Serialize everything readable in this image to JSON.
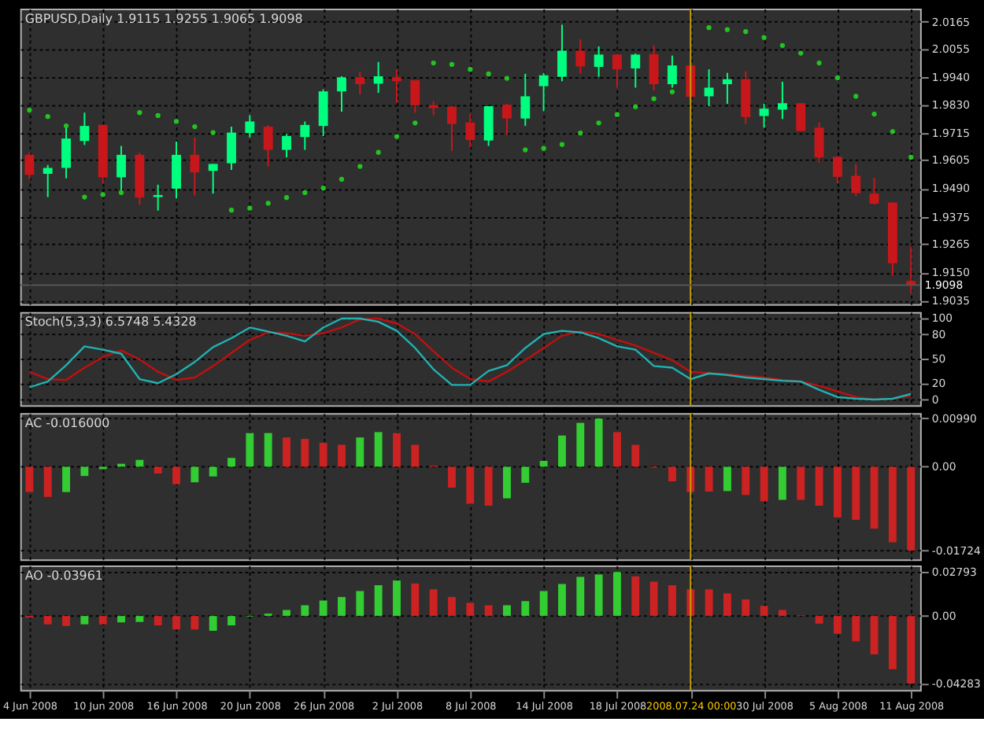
{
  "chart_data": [
    {
      "type": "candlestick",
      "title": "GBPUSD,Daily  1.9115 1.9255 1.9065 1.9098",
      "categories": [
        "4 Jun 2008",
        null,
        null,
        null,
        "10 Jun 2008",
        null,
        null,
        null,
        "16 Jun 2008",
        null,
        null,
        null,
        "20 Jun 2008",
        null,
        null,
        null,
        "26 Jun 2008",
        null,
        null,
        null,
        "2 Jul 2008",
        null,
        null,
        null,
        "8 Jul 2008",
        null,
        null,
        null,
        "14 Jul 2008",
        null,
        null,
        null,
        "18 Jul 2008",
        null,
        null,
        null,
        "2008.07.24 00:00",
        null,
        null,
        null,
        "30 Jul 2008",
        null,
        null,
        null,
        "5 Aug 2008",
        null,
        null,
        null,
        "11 Aug 2008"
      ],
      "ohlc": [
        [
          1.9626,
          1.9636,
          1.9525,
          1.9545
        ],
        [
          1.9549,
          1.9585,
          1.9455,
          1.9573
        ],
        [
          1.9573,
          1.9747,
          1.9531,
          1.9692
        ],
        [
          1.9682,
          1.9797,
          1.9666,
          1.9743
        ],
        [
          1.9747,
          1.9747,
          1.9509,
          1.9535
        ],
        [
          1.9535,
          1.9662,
          1.9475,
          1.9626
        ],
        [
          1.9626,
          1.9634,
          1.9424,
          1.9453
        ],
        [
          1.9455,
          1.9505,
          1.94,
          1.9463
        ],
        [
          1.9489,
          1.968,
          1.9449,
          1.9626
        ],
        [
          1.9626,
          1.9696,
          1.9461,
          1.9555
        ],
        [
          1.9561,
          1.9589,
          1.9469,
          1.9589
        ],
        [
          1.9592,
          1.974,
          1.9565,
          1.9716
        ],
        [
          1.9714,
          1.9787,
          1.9696,
          1.9761
        ],
        [
          1.974,
          1.9747,
          1.9579,
          1.9646
        ],
        [
          1.9646,
          1.971,
          1.9616,
          1.9702
        ],
        [
          1.9698,
          1.9761,
          1.9646,
          1.9747
        ],
        [
          1.9743,
          1.9891,
          1.9702,
          1.9883
        ],
        [
          1.9883,
          1.9944,
          1.9801,
          1.994
        ],
        [
          1.994,
          1.9962,
          1.9871,
          1.9912
        ],
        [
          1.9914,
          2.0002,
          1.9877,
          1.9944
        ],
        [
          1.994,
          1.9972,
          1.9837,
          1.9924
        ],
        [
          1.9928,
          1.9928,
          1.9797,
          1.9827
        ],
        [
          1.9827,
          1.9843,
          1.9787,
          1.9815
        ],
        [
          1.9821,
          1.9827,
          1.9642,
          1.9751
        ],
        [
          1.9757,
          1.9791,
          1.9656,
          1.9686
        ],
        [
          1.9684,
          1.9823,
          1.9662,
          1.9823
        ],
        [
          1.9829,
          1.9833,
          1.9706,
          1.9773
        ],
        [
          1.9773,
          1.9954,
          1.9743,
          1.9863
        ],
        [
          1.9904,
          1.9958,
          1.9802,
          1.9948
        ],
        [
          1.9942,
          2.0153,
          1.9924,
          2.0048
        ],
        [
          2.0048,
          2.0093,
          1.9954,
          1.9984
        ],
        [
          1.9982,
          2.0065,
          1.9942,
          2.0032
        ],
        [
          2.0032,
          2.0036,
          1.9898,
          1.9972
        ],
        [
          1.9976,
          2.0036,
          1.9898,
          2.0032
        ],
        [
          2.0034,
          2.0069,
          1.9887,
          1.9912
        ],
        [
          1.9912,
          2.0028,
          1.9898,
          1.9988
        ],
        [
          1.9988,
          1.9988,
          1.9847,
          1.9861
        ],
        [
          1.9863,
          1.9972,
          1.9823,
          1.9898
        ],
        [
          1.9912,
          1.9958,
          1.9833,
          1.9932
        ],
        [
          1.9932,
          1.9964,
          1.9751,
          1.9779
        ],
        [
          1.9783,
          1.9833,
          1.9736,
          1.9813
        ],
        [
          1.9809,
          1.9922,
          1.9771,
          1.9835
        ],
        [
          1.9835,
          1.9835,
          1.9722,
          1.9722
        ],
        [
          1.9736,
          1.9757,
          1.9596,
          1.9616
        ],
        [
          1.9618,
          1.9618,
          1.9511,
          1.9537
        ],
        [
          1.9541,
          1.9589,
          1.9459,
          1.9471
        ],
        [
          1.9469,
          1.9533,
          1.9424,
          1.9428
        ],
        [
          1.9433,
          1.9433,
          1.9137,
          1.9187
        ],
        [
          1.9115,
          1.9255,
          1.9065,
          1.9098
        ]
      ],
      "colors": [
        "#c8171b",
        "#00ff7f",
        "#00ff7f",
        "#00ff7f",
        "#c8171b",
        "#00ff7f",
        "#c8171b",
        "#00ff7f",
        "#00ff7f",
        "#c8171b",
        "#00ff7f",
        "#00ff7f",
        "#00ff7f",
        "#c8171b",
        "#00ff7f",
        "#00ff7f",
        "#00ff7f",
        "#00ff7f",
        "#c8171b",
        "#00ff7f",
        "#c8171b",
        "#c8171b",
        "#c8171b",
        "#c8171b",
        "#c8171b",
        "#00ff7f",
        "#c8171b",
        "#00ff7f",
        "#00ff7f",
        "#00ff7f",
        "#c8171b",
        "#00ff7f",
        "#c8171b",
        "#00ff7f",
        "#c8171b",
        "#00ff7f",
        "#c8171b",
        "#00ff7f",
        "#00ff7f",
        "#c8171b",
        "#00ff7f",
        "#00ff7f",
        "#c8171b",
        "#c8171b",
        "#c8171b",
        "#c8171b",
        "#c8171b",
        "#c8171b",
        "#c8171b"
      ],
      "series": [
        {
          "type": "scatter",
          "color": "#22c422",
          "values": [
            1.9807,
            1.9781,
            1.9743,
            1.9455,
            1.9465,
            1.9473,
            1.9797,
            1.9785,
            1.9761,
            1.974,
            1.9716,
            1.9402,
            1.941,
            1.943,
            1.9453,
            1.9473,
            1.9491,
            1.9527,
            1.9579,
            1.9636,
            1.97,
            1.9755,
            1.9998,
            1.9992,
            1.9972,
            1.9954,
            1.9936,
            1.9646,
            1.9652,
            1.9668,
            1.9714,
            1.9755,
            1.9789,
            1.9821,
            1.9853,
            1.9881,
            null,
            2.0141,
            2.0133,
            2.0125,
            2.0101,
            2.0069,
            2.0038,
            1.9998,
            1.9938,
            1.9863,
            1.9791,
            1.972,
            1.9616
          ]
        }
      ],
      "marker": "circle",
      "ylim": [
        1.9021,
        2.0218
      ],
      "yticks": [
        2.0165,
        2.0055,
        {
          "value": 1.994,
          "label": "1.9940"
        },
        {
          "value": 1.983,
          "label": "1.9830"
        },
        1.9715,
        1.9605,
        {
          "value": 1.949,
          "label": "1.9490"
        },
        1.9375,
        1.9265,
        {
          "value": 1.915,
          "label": "1.9150"
        },
        1.9035
      ],
      "grid": true,
      "tick_labels": "y",
      "ref_lines": [
        {
          "axis": "x",
          "value": "2008.07.24 00:00",
          "color": "#c8a000"
        },
        {
          "axis": "y",
          "value": 1.9098,
          "label": "1.9098",
          "color": "#555555"
        }
      ]
    },
    {
      "type": "line",
      "title": "Stoch(5,3,3) 6.5748 5.4328",
      "categories": [
        "4 Jun 2008",
        null,
        null,
        null,
        "10 Jun 2008",
        null,
        null,
        null,
        "16 Jun 2008",
        null,
        null,
        null,
        "20 Jun 2008",
        null,
        null,
        null,
        "26 Jun 2008",
        null,
        null,
        null,
        "2 Jul 2008",
        null,
        null,
        null,
        "8 Jul 2008",
        null,
        null,
        null,
        "14 Jul 2008",
        null,
        null,
        null,
        "18 Jul 2008",
        null,
        null,
        null,
        "2008.07.24 00:00",
        null,
        null,
        null,
        "30 Jul 2008",
        null,
        null,
        null,
        "5 Aug 2008",
        null,
        null,
        null,
        "11 Aug 2008"
      ],
      "series": [
        {
          "color": "#c01010",
          "values": [
            34,
            25,
            24,
            39,
            52,
            60,
            49,
            34,
            24,
            27,
            41,
            57,
            73,
            82,
            81,
            78,
            81,
            88,
            98,
            99,
            93,
            80,
            59,
            39,
            25,
            22,
            34,
            48,
            63,
            78,
            83,
            80,
            73,
            66,
            57,
            48,
            34,
            32,
            31,
            29,
            27,
            24,
            22,
            17,
            10,
            3,
            0,
            1,
            5
          ]
        },
        {
          "color": "#20b2b2",
          "values": [
            15,
            22,
            42,
            65,
            61,
            56,
            25,
            20,
            31,
            46,
            64,
            75,
            88,
            83,
            78,
            71,
            88,
            99,
            99,
            95,
            84,
            63,
            37,
            18,
            18,
            35,
            42,
            63,
            80,
            84,
            82,
            75,
            65,
            61,
            41,
            39,
            25,
            32,
            30,
            27,
            25,
            23,
            22,
            12,
            3,
            1,
            0,
            1,
            7
          ]
        }
      ],
      "ylim": [
        -7,
        107
      ],
      "yticks": [
        0,
        20,
        50,
        80,
        100
      ],
      "grid": true,
      "tick_labels": "y",
      "ref_lines": [
        {
          "axis": "x",
          "value": "2008.07.24 00:00",
          "color": "#c8a000"
        }
      ]
    },
    {
      "type": "bar",
      "title": "AC -0.016000",
      "categories": [
        "4 Jun 2008",
        null,
        null,
        null,
        "10 Jun 2008",
        null,
        null,
        null,
        "16 Jun 2008",
        null,
        null,
        null,
        "20 Jun 2008",
        null,
        null,
        null,
        "26 Jun 2008",
        null,
        null,
        null,
        "2 Jul 2008",
        null,
        null,
        null,
        "8 Jul 2008",
        null,
        null,
        null,
        "14 Jul 2008",
        null,
        null,
        null,
        "18 Jul 2008",
        null,
        null,
        null,
        "2008.07.24 00:00",
        null,
        null,
        null,
        "30 Jul 2008",
        null,
        null,
        null,
        "5 Aug 2008",
        null,
        null,
        null,
        "11 Aug 2008"
      ],
      "values": [
        -0.0052,
        -0.0062,
        -0.0052,
        -0.0019,
        -0.0005,
        0.0006,
        0.0014,
        -0.0014,
        -0.0036,
        -0.0032,
        -0.002,
        0.0018,
        0.0069,
        0.0069,
        0.006,
        0.0057,
        0.0049,
        0.0045,
        0.006,
        0.0071,
        0.0069,
        0.0045,
        0.0002,
        -0.0043,
        -0.0076,
        -0.008,
        -0.0065,
        -0.0033,
        0.0012,
        0.0064,
        0.009,
        0.0099,
        0.0071,
        0.0045,
        -0.0002,
        -0.003,
        -0.0052,
        -0.0051,
        -0.005,
        -0.0058,
        -0.0071,
        -0.0068,
        -0.0068,
        -0.008,
        -0.0104,
        -0.0109,
        -0.0127,
        -0.0155,
        -0.0172
      ],
      "colors": [
        "#cc2222",
        "#cc2222",
        "#33cc33",
        "#33cc33",
        "#33cc33",
        "#33cc33",
        "#33cc33",
        "#cc2222",
        "#cc2222",
        "#33cc33",
        "#33cc33",
        "#33cc33",
        "#33cc33",
        "#33cc33",
        "#cc2222",
        "#cc2222",
        "#cc2222",
        "#cc2222",
        "#33cc33",
        "#33cc33",
        "#cc2222",
        "#cc2222",
        "#cc2222",
        "#cc2222",
        "#cc2222",
        "#cc2222",
        "#33cc33",
        "#33cc33",
        "#33cc33",
        "#33cc33",
        "#33cc33",
        "#33cc33",
        "#cc2222",
        "#cc2222",
        "#cc2222",
        "#cc2222",
        "#cc2222",
        "#cc2222",
        "#33cc33",
        "#cc2222",
        "#cc2222",
        "#33cc33",
        "#cc2222",
        "#cc2222",
        "#cc2222",
        "#cc2222",
        "#cc2222",
        "#cc2222",
        "#cc2222"
      ],
      "ylim": [
        -0.019,
        0.011
      ],
      "yticks": [
        {
          "value": 0.0099,
          "label": "0.00990"
        },
        {
          "value": 0,
          "label": "0.00"
        },
        -0.01724
      ],
      "grid": true,
      "tick_labels": "y",
      "ref_lines": [
        {
          "axis": "x",
          "value": "2008.07.24 00:00",
          "color": "#c8a000"
        }
      ]
    },
    {
      "type": "bar",
      "title": "AO -0.03961",
      "categories": [
        "4 Jun 2008",
        null,
        null,
        null,
        "10 Jun 2008",
        null,
        null,
        null,
        "16 Jun 2008",
        null,
        null,
        null,
        "20 Jun 2008",
        null,
        null,
        null,
        "26 Jun 2008",
        null,
        null,
        null,
        "2 Jul 2008",
        null,
        null,
        null,
        "8 Jul 2008",
        null,
        null,
        null,
        "14 Jul 2008",
        null,
        null,
        null,
        "18 Jul 2008",
        null,
        null,
        null,
        "2008.07.24 00:00",
        null,
        null,
        null,
        "30 Jul 2008",
        null,
        null,
        null,
        "5 Aug 2008",
        null,
        null,
        null,
        "11 Aug 2008"
      ],
      "values": [
        -0.0011,
        -0.0053,
        -0.0064,
        -0.0053,
        -0.0053,
        -0.0041,
        -0.0038,
        -0.006,
        -0.0086,
        -0.0086,
        -0.0094,
        -0.006,
        -0.0004,
        0.0015,
        0.0038,
        0.0068,
        0.0098,
        0.012,
        0.0158,
        0.0195,
        0.0225,
        0.0206,
        0.0169,
        0.012,
        0.0083,
        0.0068,
        0.0068,
        0.0094,
        0.0158,
        0.0203,
        0.0248,
        0.0263,
        0.02793,
        0.0251,
        0.0218,
        0.0195,
        0.0169,
        0.0169,
        0.0143,
        0.0105,
        0.0064,
        0.0038,
        0.0004,
        -0.0049,
        -0.0113,
        -0.0161,
        -0.0244,
        -0.0338,
        -0.04283
      ],
      "colors": [
        "#cc2222",
        "#cc2222",
        "#cc2222",
        "#33cc33",
        "#cc2222",
        "#33cc33",
        "#33cc33",
        "#cc2222",
        "#cc2222",
        "#cc2222",
        "#33cc33",
        "#33cc33",
        "#33cc33",
        "#33cc33",
        "#33cc33",
        "#33cc33",
        "#33cc33",
        "#33cc33",
        "#33cc33",
        "#33cc33",
        "#33cc33",
        "#cc2222",
        "#cc2222",
        "#cc2222",
        "#cc2222",
        "#cc2222",
        "#33cc33",
        "#33cc33",
        "#33cc33",
        "#33cc33",
        "#33cc33",
        "#33cc33",
        "#33cc33",
        "#cc2222",
        "#cc2222",
        "#cc2222",
        "#cc2222",
        "#cc2222",
        "#cc2222",
        "#cc2222",
        "#cc2222",
        "#cc2222",
        "#cc2222",
        "#cc2222",
        "#cc2222",
        "#cc2222",
        "#cc2222",
        "#cc2222",
        "#cc2222"
      ],
      "ylim": [
        -0.047,
        0.032
      ],
      "yticks": [
        0.02793,
        {
          "value": 0,
          "label": "0.00"
        },
        -0.04283
      ],
      "grid": true,
      "ref_lines": [
        {
          "axis": "x",
          "value": "2008.07.24 00:00",
          "color": "#c8a000"
        }
      ]
    }
  ]
}
